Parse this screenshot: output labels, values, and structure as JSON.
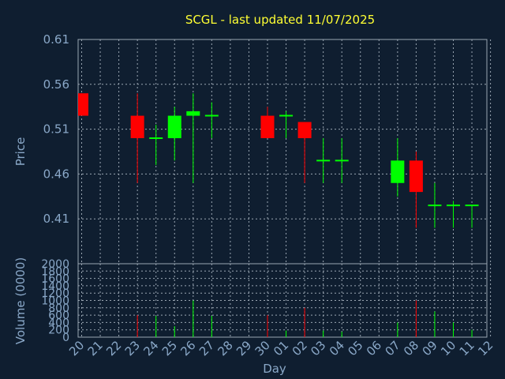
{
  "chart_data": {
    "type": "candlestick",
    "title": "SCGL - last updated 11/07/2025",
    "xlabel": "Day",
    "price_panel": {
      "ylabel": "Price",
      "yticks": [
        "0.61",
        "0.56",
        "0.51",
        "0.46",
        "0.41"
      ],
      "ylim": [
        0.36,
        0.61
      ]
    },
    "volume_panel": {
      "ylabel": "Volume (0000)",
      "yticks": [
        "2000",
        "1800",
        "1600",
        "1400",
        "1200",
        "1000",
        "800",
        "600",
        "400",
        "200",
        "0"
      ],
      "ylim": [
        0,
        2000
      ]
    },
    "x_labels": [
      "20",
      "21",
      "22",
      "23",
      "24",
      "25",
      "26",
      "27",
      "28",
      "29",
      "30",
      "01",
      "02",
      "03",
      "04",
      "05",
      "06",
      "07",
      "08",
      "09",
      "10",
      "11",
      "12"
    ],
    "candles": [
      {
        "day": "20",
        "open": 0.55,
        "high": 0.55,
        "low": 0.525,
        "close": 0.525,
        "volume": 0
      },
      {
        "day": "23",
        "open": 0.525,
        "high": 0.55,
        "low": 0.45,
        "close": 0.5,
        "volume": 600
      },
      {
        "day": "24",
        "open": 0.5,
        "high": 0.515,
        "low": 0.47,
        "close": 0.5,
        "volume": 580
      },
      {
        "day": "25",
        "open": 0.5,
        "high": 0.535,
        "low": 0.475,
        "close": 0.525,
        "volume": 300
      },
      {
        "day": "26",
        "open": 0.525,
        "high": 0.55,
        "low": 0.45,
        "close": 0.53,
        "volume": 1000
      },
      {
        "day": "27",
        "open": 0.525,
        "high": 0.54,
        "low": 0.5,
        "close": 0.525,
        "volume": 580
      },
      {
        "day": "30",
        "open": 0.525,
        "high": 0.535,
        "low": 0.5,
        "close": 0.5,
        "volume": 600
      },
      {
        "day": "01",
        "open": 0.525,
        "high": 0.53,
        "low": 0.5,
        "close": 0.525,
        "volume": 180
      },
      {
        "day": "02",
        "open": 0.518,
        "high": 0.518,
        "low": 0.45,
        "close": 0.5,
        "volume": 800
      },
      {
        "day": "03",
        "open": 0.475,
        "high": 0.5,
        "low": 0.45,
        "close": 0.475,
        "volume": 180
      },
      {
        "day": "04",
        "open": 0.475,
        "high": 0.5,
        "low": 0.45,
        "close": 0.475,
        "volume": 150
      },
      {
        "day": "07",
        "open": 0.45,
        "high": 0.5,
        "low": 0.435,
        "close": 0.475,
        "volume": 400
      },
      {
        "day": "08",
        "open": 0.475,
        "high": 0.485,
        "low": 0.4,
        "close": 0.44,
        "volume": 1000
      },
      {
        "day": "09",
        "open": 0.425,
        "high": 0.45,
        "low": 0.4,
        "close": 0.425,
        "volume": 700
      },
      {
        "day": "10",
        "open": 0.425,
        "high": 0.43,
        "low": 0.4,
        "close": 0.425,
        "volume": 400
      },
      {
        "day": "11",
        "open": 0.425,
        "high": 0.425,
        "low": 0.4,
        "close": 0.425,
        "volume": 200
      }
    ],
    "colors": {
      "background": "#0f1e30",
      "up": "#00ff00",
      "down": "#ff0000",
      "title": "#ffff33",
      "text": "#8aa8c8",
      "grid": "#9aa6b2"
    },
    "grid": true
  }
}
